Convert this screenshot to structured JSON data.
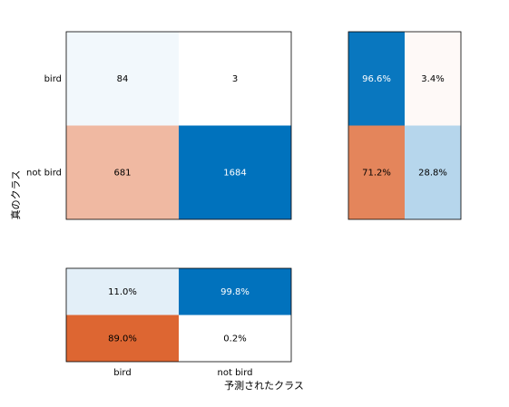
{
  "chart_data": {
    "type": "confusion",
    "x_label": "予測されたクラス",
    "y_label": "真のクラス",
    "categories": [
      "bird",
      "not bird"
    ],
    "matrix": [
      [
        84,
        3
      ],
      [
        681,
        1684
      ]
    ],
    "row_summary": {
      "values": [
        [
          96.6,
          3.4
        ],
        [
          71.2,
          28.8
        ]
      ],
      "value_labels": [
        [
          "96.6%",
          "3.4%"
        ],
        [
          "71.2%",
          "28.8%"
        ]
      ]
    },
    "column_summary": {
      "values": [
        [
          11.0,
          99.8
        ],
        [
          89.0,
          0.2
        ]
      ],
      "value_labels": [
        [
          "11.0%",
          "99.8%"
        ],
        [
          "89.0%",
          "0.2%"
        ]
      ]
    },
    "correct_color": "#0072bd",
    "incorrect_color": "#d95319"
  }
}
